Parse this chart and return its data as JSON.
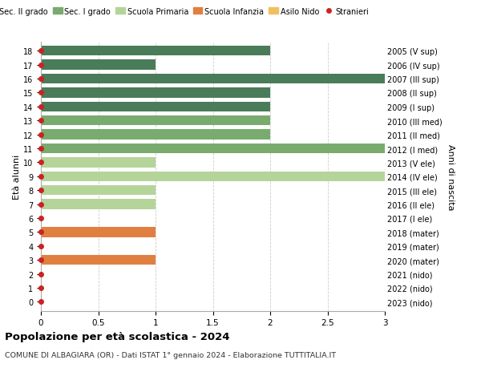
{
  "ages": [
    18,
    17,
    16,
    15,
    14,
    13,
    12,
    11,
    10,
    9,
    8,
    7,
    6,
    5,
    4,
    3,
    2,
    1,
    0
  ],
  "year_labels": [
    "2005 (V sup)",
    "2006 (IV sup)",
    "2007 (III sup)",
    "2008 (II sup)",
    "2009 (I sup)",
    "2010 (III med)",
    "2011 (II med)",
    "2012 (I med)",
    "2013 (V ele)",
    "2014 (IV ele)",
    "2015 (III ele)",
    "2016 (II ele)",
    "2017 (I ele)",
    "2018 (mater)",
    "2019 (mater)",
    "2020 (mater)",
    "2021 (nido)",
    "2022 (nido)",
    "2023 (nido)"
  ],
  "values": [
    2.0,
    1.0,
    3.0,
    2.0,
    2.0,
    2.0,
    2.0,
    3.0,
    1.0,
    3.0,
    1.0,
    1.0,
    0.0,
    1.0,
    0.0,
    1.0,
    0.0,
    0.0,
    0.0
  ],
  "bar_colors": [
    "#4a7c59",
    "#4a7c59",
    "#4a7c59",
    "#4a7c59",
    "#4a7c59",
    "#7aab6e",
    "#7aab6e",
    "#7aab6e",
    "#b5d49a",
    "#b5d49a",
    "#b5d49a",
    "#b5d49a",
    "#b5d49a",
    "#e08040",
    "#e08040",
    "#e08040",
    "#f0c060",
    "#f0c060",
    "#f0c060"
  ],
  "stranieri_color": "#cc2222",
  "stranieri_size": 4,
  "legend_items": [
    {
      "label": "Sec. II grado",
      "color": "#4a7c59"
    },
    {
      "label": "Sec. I grado",
      "color": "#7aab6e"
    },
    {
      "label": "Scuola Primaria",
      "color": "#b5d49a"
    },
    {
      "label": "Scuola Infanzia",
      "color": "#e08040"
    },
    {
      "label": "Asilo Nido",
      "color": "#f0c060"
    },
    {
      "label": "Stranieri",
      "color": "#cc2222"
    }
  ],
  "ylabel_left": "Età alunni",
  "ylabel_right": "Anni di nascita",
  "title": "Popolazione per età scolastica - 2024",
  "subtitle": "COMUNE DI ALBAGIARA (OR) - Dati ISTAT 1° gennaio 2024 - Elaborazione TUTTITALIA.IT",
  "xlim": [
    0,
    3.0
  ],
  "xticks": [
    0,
    0.5,
    1.0,
    1.5,
    2.0,
    2.5,
    3.0
  ],
  "bg_color": "#ffffff",
  "grid_color": "#cccccc",
  "bar_height": 0.72
}
